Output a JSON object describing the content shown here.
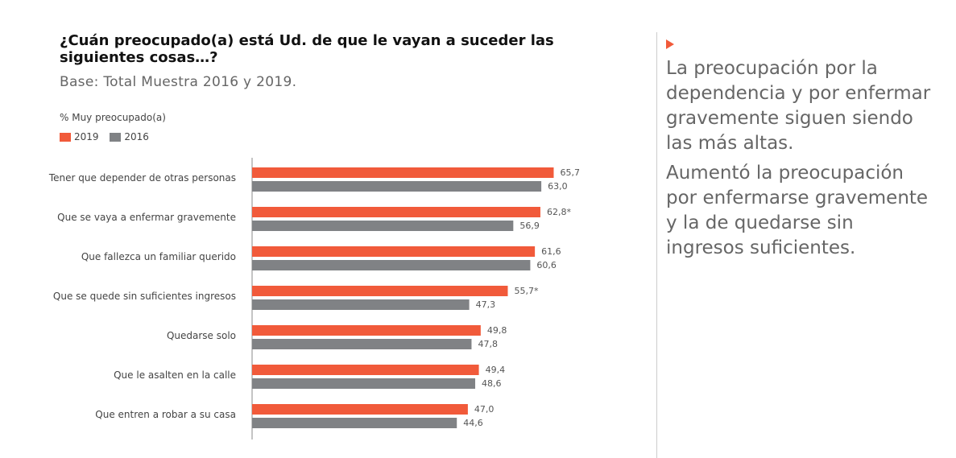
{
  "header": {
    "title": "¿Cuán preocupado(a) está Ud. de que le vayan a suceder las siguientes cosas…?",
    "subtitle": "Base: Total Muestra 2016 y 2019.",
    "metric_label": "% Muy preocupado(a)"
  },
  "legend": [
    {
      "label": "2019",
      "color": "#f15a3a"
    },
    {
      "label": "2016",
      "color": "#808285"
    }
  ],
  "chart_data": {
    "type": "bar",
    "orientation": "horizontal",
    "categories": [
      "Tener que depender de otras personas",
      "Que se vaya a enfermar gravemente",
      "Que fallezca un familiar querido",
      "Que se quede sin suficientes ingresos",
      "Quedarse solo",
      "Que le asalten en la calle",
      "Que entren a robar a su casa"
    ],
    "series": [
      {
        "name": "2019",
        "color": "#f15a3a",
        "values": [
          65.7,
          62.8,
          61.6,
          55.7,
          49.8,
          49.4,
          47.0
        ],
        "labels": [
          "65,7",
          "62,8*",
          "61,6",
          "55,7*",
          "49,8",
          "49,4",
          "47,0"
        ]
      },
      {
        "name": "2016",
        "color": "#808285",
        "values": [
          63.0,
          56.9,
          60.6,
          47.3,
          47.8,
          48.6,
          44.6
        ],
        "labels": [
          "63,0",
          "56,9",
          "60,6",
          "47,3",
          "47,8",
          "48,6",
          "44,6"
        ]
      }
    ],
    "xlim": [
      0,
      70
    ],
    "grid": false,
    "legend_position": "top-left"
  },
  "side_text": {
    "p1": "La preocupación por la dependencia y por enfermar gravemente siguen siendo las más altas.",
    "p2": "Aumentó la preocupación por enfermarse gravemente y la de quedarse sin ingresos suficientes."
  }
}
